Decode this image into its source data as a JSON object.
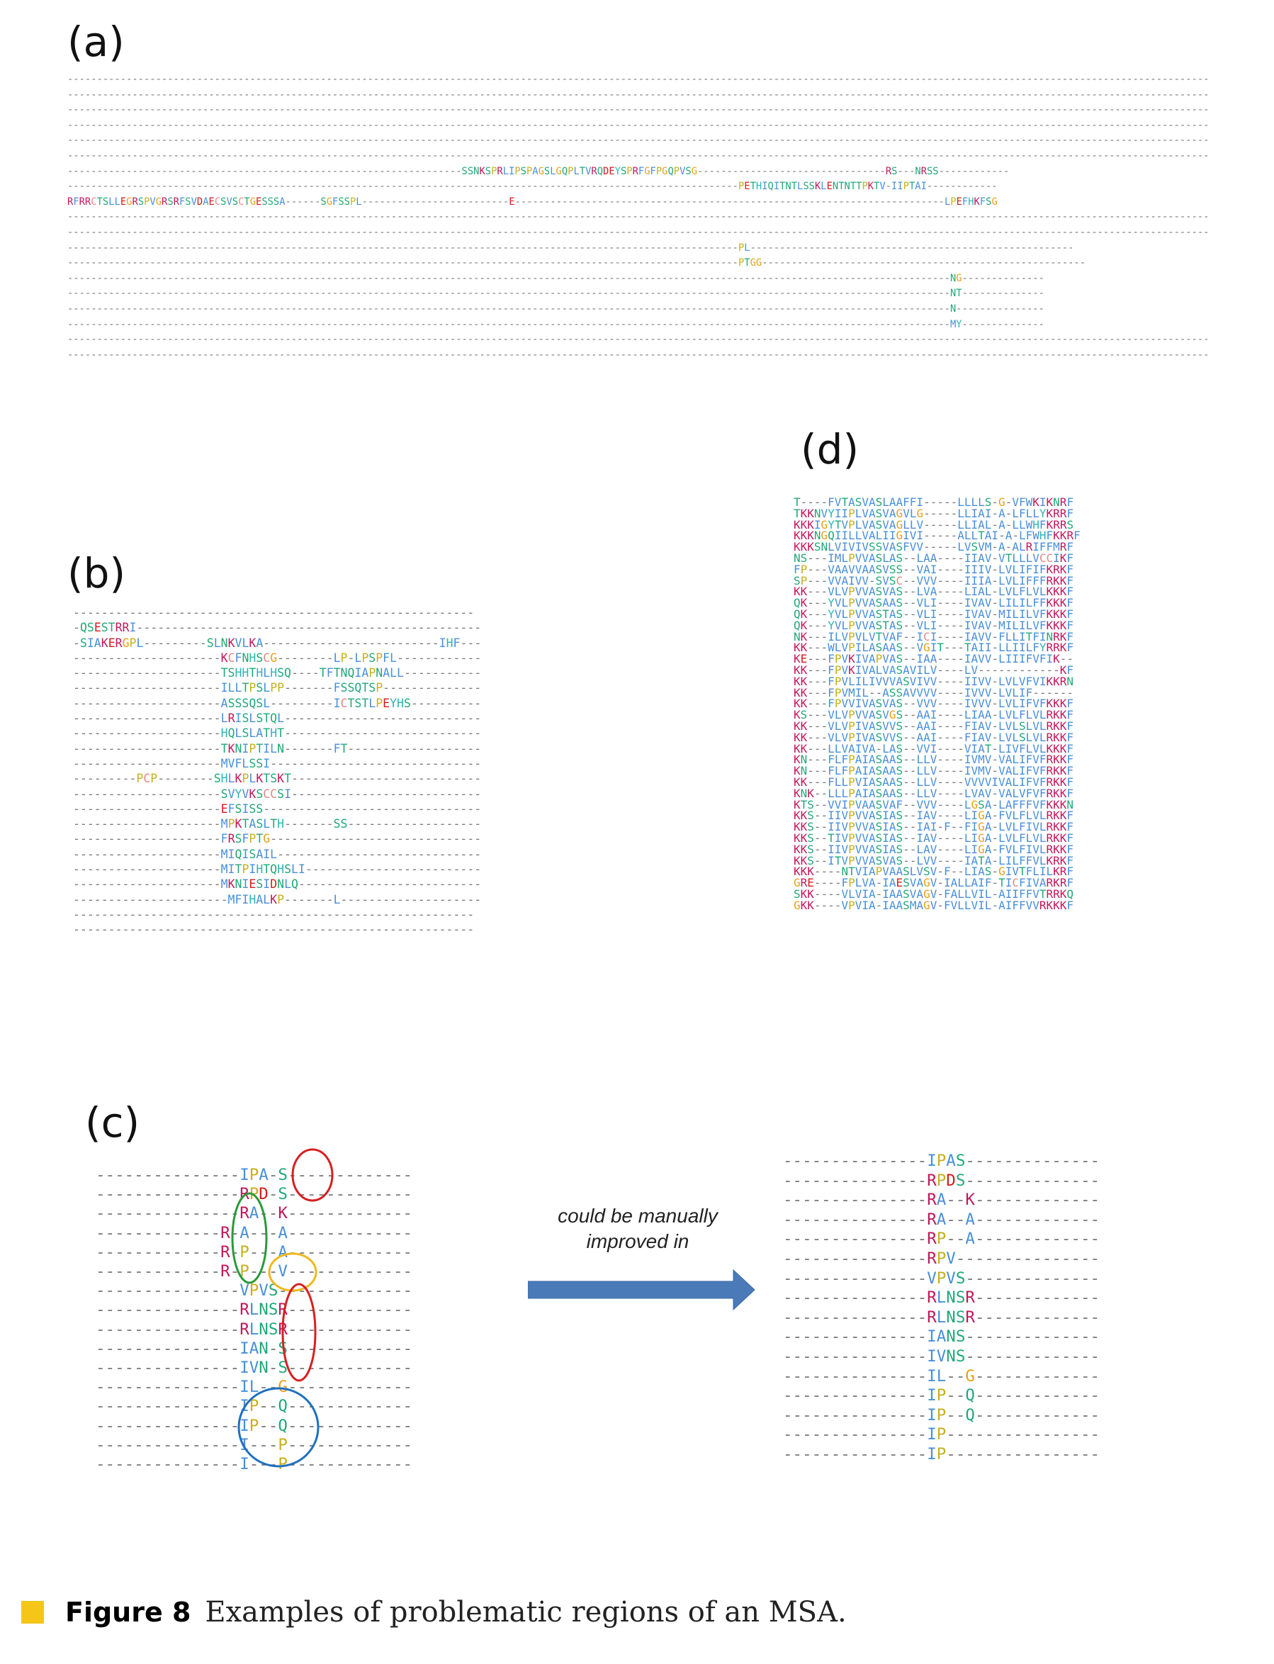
{
  "panels": {
    "a": {
      "label": "(a)",
      "rows": [
        "--------------------------------------------------------------------------------------------------------------------------------------------------------------------------------------------------",
        "--------------------------------------------------------------------------------------------------------------------------------------------------------------------------------------------------",
        "--------------------------------------------------------------------------------------------------------------------------------------------------------------------------------------------------",
        "--------------------------------------------------------------------------------------------------------------------------------------------------------------------------------------------------",
        "--------------------------------------------------------------------------------------------------------------------------------------------------------------------------------------------------",
        "--------------------------------------------------------------------------------------------------------------------------------------------------------------------------------------------------",
        "-------------------------------------------------------------------SSNKSPRLIPSPAGSLGQPLTVRQDEYSPRFGFPGQPVSG--------------------------------RS---NRSS------------",
        "------------------------------------------------------------------------------------------------------------------PETHIQITNTLSSKLENTNTTPKTV-IIPTAI------------",
        "RFRRCTSLLEGRSPVGRSRFSVDAECSVSCTGESSSA------SGFSSPL-------------------------E-------------------------------------------------------------------------LPEFHKFSG",
        "--------------------------------------------------------------------------------------------------------------------------------------------------------------------------------------------------",
        "--------------------------------------------------------------------------------------------------------------------------------------------------------------------------------------------------",
        "------------------------------------------------------------------------------------------------------------------PL-------------------------------------------------------",
        "------------------------------------------------------------------------------------------------------------------PTGG-------------------------------------------------------",
        "------------------------------------------------------------------------------------------------------------------------------------------------------NG--------------",
        "------------------------------------------------------------------------------------------------------------------------------------------------------NT--------------",
        "------------------------------------------------------------------------------------------------------------------------------------------------------N---------------",
        "------------------------------------------------------------------------------------------------------------------------------------------------------MY--------------",
        "--------------------------------------------------------------------------------------------------------------------------------------------------------------------------------------------------",
        "--------------------------------------------------------------------------------------------------------------------------------------------------------------------------------------------------"
      ]
    },
    "b": {
      "label": "(b)",
      "rows": [
        "---------------------------------------------------------",
        "-QSESTRRI-------------------------------------------------",
        "-SIAKERGPL---------SLNKVLKA-------------------------IHF---",
        "---------------------KCFNHSCG--------LP-LPSPFL------------",
        "---------------------TSHHTHLHSQ----TFTNQIAPNALL-----------",
        "---------------------ILLTPSLPP-------FSSQTSP--------------",
        "---------------------ASSSQSL---------ICTSTLPEYHS----------",
        "---------------------LRISLSTQL----------------------------",
        "---------------------HQLSLATHT----------------------------",
        "---------------------TKNIPTILN-------FT-------------------",
        "---------------------MVFLSSI------------------------------",
        "---------PCP--------SHLKPLKTSKT---------------------------",
        "---------------------SVYVKSCCSI---------------------------",
        "---------------------EFSISS-------------------------------",
        "---------------------MPKTASLTH-------SS-------------------",
        "---------------------FRSFPTG------------------------------",
        "---------------------MIQISAIL-----------------------------",
        "---------------------MITPIHTQHSLI-------------------------",
        "---------------------MKNIESIDNLQ--------------------------",
        "----------------------MFIHALKP-------L--------------------",
        "---------------------------------------------------------",
        "---------------------------------------------------------"
      ]
    },
    "c": {
      "label": "(c)",
      "left_rows": [
        "---------------IPA-S-------------",
        "---------------RPD-S-------------",
        "---------------RA--K-------------",
        "-------------R-A---A-------------",
        "-------------R-P---A-------------",
        "-------------R-P---V-------------",
        "---------------VPVS--------------",
        "---------------RLNSR-------------",
        "---------------RLNSR-------------",
        "---------------IAN-S-------------",
        "---------------IVN-S-------------",
        "---------------IL--G-------------",
        "---------------IP--Q-------------",
        "---------------IP--Q-------------",
        "---------------I---P-------------",
        "---------------I---P-------------"
      ],
      "right_rows": [
        "---------------IPAS--------------",
        "---------------RPDS--------------",
        "---------------RA--K-------------",
        "---------------RA--A-------------",
        "---------------RP--A-------------",
        "---------------RPV---------------",
        "---------------VPVS--------------",
        "---------------RLNSR-------------",
        "---------------RLNSR-------------",
        "---------------IANS--------------",
        "---------------IVNS--------------",
        "---------------IL--G-------------",
        "---------------IP--Q-------------",
        "---------------IP--Q-------------",
        "---------------IP----------------",
        "---------------IP----------------"
      ],
      "annotation": [
        "could be manually",
        "improved in"
      ]
    },
    "d": {
      "label": "(d)",
      "rows": [
        "T----FVTASVASLAAFFI-----LLLLS-G-VFWKIKNRF",
        "TKKNVYIIPLVASVAGVLG-----LLIAI-A-LFLLYKRRF",
        "KKKIGYTVPLVASVAGLLV-----LLIAL-A-LLWHFKRRS",
        "KKKNGQIILLVALIIGIVI-----ALLTAI-A-LFWHFKKRF",
        "KKKSNLVIVIVSSVASFVV-----LVSVM-A-ALRIFFMRF",
        "NS---IMLPVVASLAS--LAA----IIAV-VTLLLVCCIKF",
        "FP---VAAVVAASVSS--VAI----IIIV-LVLIFIFKRKF",
        "SP---VVAIVV-SVSC--VVV----IIIA-LVLIFFFRKKF",
        "KK---VLVPVVASVAS--LVA----LIAL-LVLFLVLKKKF",
        "QK---YVLPVVASAAS--VLI----IVAV-LILILFFKKKF",
        "QK---YVLPVVASTAS--VLI----IVAV-MILILVFKKKF",
        "QK---YVLPVVASTAS--VLI----IVAV-MILILVFKKKF",
        "NK---ILVPVLVTVAF--ICI----IAVV-FLLITFINRKF",
        "KK---WLVPILASAAS--VGIT---TAII-LLIILFYRRKF",
        "KE---FPVKIVAPVAS--IAA----IAVV-LIIIFVFIK--",
        "KK---FPVKIVALVASAVILV----LV------------KF",
        "KK---FPVLILIVVVASVIVV----IIVV-LVLVFVIKKRN",
        "KK---FPVMIL--ASSAVVVV----IVVV-LVLIF------",
        "KK---FPVVIVASVAS--VVV----IVVV-LVLIFVFKKKF",
        "KS---VLVPVVASVGS--AAI----LIAA-LVLFLVLRKKF",
        "KK---VLVPIVASVVS--AAI----FIAV-LVLSLVLRKKF",
        "KK---VLVPIVASVVS--AAI----FIAV-LVLSLVLRKKF",
        "KK---LLVAIVA-LAS--VVI----VIAT-LIVFLVLKKKF",
        "KN---FLFPAIASAAS--LLV----IVMV-VALIFVFRKKF",
        "KN---FLFPAIASAAS--LLV----IVMV-VALIFVFRKKF",
        "KK---FLLPVIASAAS--LLV----VVVVIVALIFVFRKKF",
        "KNK--LLLPAIASAAS--LLV----LVAV-VALVFVFRKKF",
        "KTS--VVIPVAASVAF--VVV----LGSA-LAFFFVFKKKN",
        "KKS--IIVPVVASIAS--IAV----LIGA-FVLFLVLRKKF",
        "KKS--IIVPVVASIAS--IAI-F--FIGA-LVLFIVLRKKF",
        "KKS--TIVPVVASIAS--IAV----LIGA-LVLFLVLRKKF",
        "KKS--IIVPVVASIAS--LAV----LIGA-FVLFIVLRKKF",
        "KKS--ITVPVVASVAS--LVV----IATA-LILFFVLKRKF",
        "KKK----NTVIAPVAASLVSV-F--LIAS-GIVTFLILKRF",
        "GRE----FPLVA-IAESVAGV-IALLAIF-TICFIVARKRF",
        "SKK----VLVIA-IAASVAGV-FALLVIL-AIIFFVTRRKQ",
        "GKK----VPVIA-IAASMAGV-FVLLVIL-AIFFVVRKKKF"
      ]
    }
  },
  "caption": {
    "figure": "Figure 8",
    "text": "Examples of problematic regions of an MSA."
  },
  "colors": {
    "gap": "#7a7a7a",
    "hydrophobic": "#4a8fd8",
    "polar": "#22a878",
    "positive": "#c2185b",
    "negative": "#d81b1b",
    "glycine": "#e6a11a",
    "proline": "#c8b01a",
    "aromatic": "#2fb5b5",
    "cysteine": "#e08a8a",
    "arrow": "#4a7ab8",
    "circle_red": "#d62020",
    "circle_green": "#2a9a3a",
    "circle_yellow": "#f0b820",
    "circle_blue": "#1f6fbf"
  }
}
